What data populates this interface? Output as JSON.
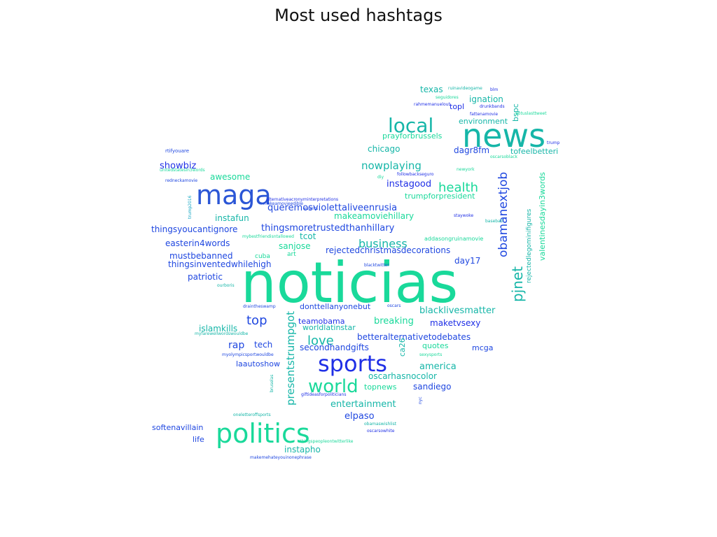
{
  "chart_data": {
    "type": "wordcloud",
    "title": "Most used hashtags",
    "colors": {
      "green": "#19d99a",
      "teal": "#16b6a8",
      "cyan": "#17a7c4",
      "blue": "#1f47e0",
      "navy": "#1f2fe6",
      "royal": "#2b56d6"
    },
    "words": [
      {
        "text": "noticias",
        "size": 6,
        "color": "green"
      },
      {
        "text": "news",
        "size": 5,
        "color": "teal"
      },
      {
        "text": "maga",
        "size": 5,
        "color": "royal"
      },
      {
        "text": "politics",
        "size": 5,
        "color": "green"
      },
      {
        "text": "sports",
        "size": 5,
        "color": "navy"
      },
      {
        "text": "local",
        "size": 4,
        "color": "teal"
      },
      {
        "text": "world",
        "size": 4,
        "color": "green"
      },
      {
        "text": "pjnet",
        "size": 3,
        "color": "teal"
      },
      {
        "text": "health",
        "size": 3,
        "color": "green"
      },
      {
        "text": "obamanextjob",
        "size": 3,
        "color": "blue"
      },
      {
        "text": "love",
        "size": 3,
        "color": "teal"
      },
      {
        "text": "top",
        "size": 3,
        "color": "blue"
      },
      {
        "text": "business",
        "size": 3,
        "color": "teal"
      },
      {
        "text": "nowplaying",
        "size": 3,
        "color": "teal"
      },
      {
        "text": "presentstrumpgot",
        "size": 3,
        "color": "teal"
      },
      {
        "text": "blacklivesmatter",
        "size": 2,
        "color": "teal"
      },
      {
        "text": "queremosviolettaliveenrusia",
        "size": 2,
        "color": "blue"
      },
      {
        "text": "thingsmoretrustedthanhillary",
        "size": 2,
        "color": "blue"
      },
      {
        "text": "instagood",
        "size": 2,
        "color": "navy"
      },
      {
        "text": "showbiz",
        "size": 2,
        "color": "navy"
      },
      {
        "text": "rap",
        "size": 2,
        "color": "blue"
      },
      {
        "text": "breaking",
        "size": 2,
        "color": "green"
      },
      {
        "text": "maketvsexy",
        "size": 2,
        "color": "navy"
      },
      {
        "text": "dagr8fm",
        "size": 2,
        "color": "blue"
      },
      {
        "text": "america",
        "size": 2,
        "color": "teal"
      },
      {
        "text": "entertainment",
        "size": 2,
        "color": "teal"
      },
      {
        "text": "elpaso",
        "size": 2,
        "color": "blue"
      },
      {
        "text": "instapho",
        "size": 2,
        "color": "teal"
      },
      {
        "text": "sandiego",
        "size": 2,
        "color": "blue"
      },
      {
        "text": "oscarhasnocolor",
        "size": 2,
        "color": "teal"
      },
      {
        "text": "chicago",
        "size": 2,
        "color": "teal"
      },
      {
        "text": "texas",
        "size": 2,
        "color": "teal"
      },
      {
        "text": "ignation",
        "size": 2,
        "color": "teal"
      },
      {
        "text": "environment",
        "size": 2,
        "color": "teal"
      },
      {
        "text": "prayforbrussels",
        "size": 2,
        "color": "green"
      },
      {
        "text": "tofeelbetteri",
        "size": 2,
        "color": "teal"
      },
      {
        "text": "topl",
        "size": 2,
        "color": "navy"
      },
      {
        "text": "bspc",
        "size": 2,
        "color": "teal"
      },
      {
        "text": "day17",
        "size": 2,
        "color": "blue"
      },
      {
        "text": "sanjose",
        "size": 2,
        "color": "green"
      },
      {
        "text": "makeamoviehillary",
        "size": 2,
        "color": "green"
      },
      {
        "text": "tcot",
        "size": 2,
        "color": "teal"
      },
      {
        "text": "instafun",
        "size": 2,
        "color": "teal"
      },
      {
        "text": "thingsyoucantignore",
        "size": 2,
        "color": "blue"
      },
      {
        "text": "easterin4words",
        "size": 2,
        "color": "blue"
      },
      {
        "text": "mustbebanned",
        "size": 2,
        "color": "blue"
      },
      {
        "text": "thingsinventedwhilehigh",
        "size": 2,
        "color": "blue"
      },
      {
        "text": "patriotic",
        "size": 2,
        "color": "blue"
      },
      {
        "text": "awesome",
        "size": 2,
        "color": "green"
      },
      {
        "text": "rejectedchristmasdecorations",
        "size": 2,
        "color": "blue"
      },
      {
        "text": "trumpforpresident",
        "size": 2,
        "color": "green"
      },
      {
        "text": "donttellanyonebut",
        "size": 2,
        "color": "blue"
      },
      {
        "text": "teamobama",
        "size": 2,
        "color": "navy"
      },
      {
        "text": "worldlatinstar",
        "size": 2,
        "color": "teal"
      },
      {
        "text": "islamkills",
        "size": 2,
        "color": "teal"
      },
      {
        "text": "tech",
        "size": 2,
        "color": "blue"
      },
      {
        "text": "betteralternativetodebates",
        "size": 2,
        "color": "blue"
      },
      {
        "text": "secondhandgifts",
        "size": 2,
        "color": "blue"
      },
      {
        "text": "quotes",
        "size": 2,
        "color": "green"
      },
      {
        "text": "mcga",
        "size": 2,
        "color": "blue"
      },
      {
        "text": "laautoshow",
        "size": 2,
        "color": "blue"
      },
      {
        "text": "topnews",
        "size": 2,
        "color": "green"
      },
      {
        "text": "ca26",
        "size": 2,
        "color": "teal"
      },
      {
        "text": "softenavillain",
        "size": 2,
        "color": "blue"
      },
      {
        "text": "life",
        "size": 2,
        "color": "blue"
      },
      {
        "text": "valentinesdayin3words",
        "size": 2,
        "color": "green"
      },
      {
        "text": "rejectedlegominifigures",
        "size": 1,
        "color": "teal"
      },
      {
        "text": "art",
        "size": 1,
        "color": "green"
      },
      {
        "text": "cuba",
        "size": 1,
        "color": "green"
      },
      {
        "text": "addasongruinamovie",
        "size": 1,
        "color": "green"
      },
      {
        "text": "blacktwitter",
        "size": 1,
        "color": "blue"
      },
      {
        "text": "ruinavideogame",
        "size": 1,
        "color": "teal"
      },
      {
        "text": "blm",
        "size": 1,
        "color": "navy"
      },
      {
        "text": "seguidores",
        "size": 1,
        "color": "green"
      },
      {
        "text": "rahmemanuelout",
        "size": 1,
        "color": "navy"
      },
      {
        "text": "drunkbands",
        "size": 1,
        "color": "navy"
      },
      {
        "text": "fattenamovie",
        "size": 1,
        "color": "navy"
      },
      {
        "text": "potuslasttweet",
        "size": 1,
        "color": "green"
      },
      {
        "text": "trump",
        "size": 1,
        "color": "navy"
      },
      {
        "text": "rtifyouare",
        "size": 1,
        "color": "blue"
      },
      {
        "text": "unitedstatesin3words",
        "size": 1,
        "color": "green"
      },
      {
        "text": "oscarsoblack",
        "size": 1,
        "color": "green"
      },
      {
        "text": "newyork",
        "size": 1,
        "color": "green"
      },
      {
        "text": "followbackseguro",
        "size": 1,
        "color": "navy"
      },
      {
        "text": "diy",
        "size": 1,
        "color": "green"
      },
      {
        "text": "redneckamovie",
        "size": 1,
        "color": "blue"
      },
      {
        "text": "trump2016",
        "size": 1,
        "color": "cyan"
      },
      {
        "text": "alternativeacronyminterpretations",
        "size": 1,
        "color": "navy"
      },
      {
        "text": "makeamovieedible",
        "size": 1,
        "color": "blue"
      },
      {
        "text": "events",
        "size": 1,
        "color": "blue"
      },
      {
        "text": "staywoke",
        "size": 1,
        "color": "navy"
      },
      {
        "text": "baseball",
        "size": 1,
        "color": "teal"
      },
      {
        "text": "mybestfriendisntallowed",
        "size": 1,
        "color": "green"
      },
      {
        "text": "ourboris",
        "size": 1,
        "color": "teal"
      },
      {
        "text": "draintheswamp",
        "size": 1,
        "color": "blue"
      },
      {
        "text": "oscars",
        "size": 1,
        "color": "blue"
      },
      {
        "text": "myfarewellwordswouldbe",
        "size": 1,
        "color": "teal"
      },
      {
        "text": "myolympicsportwouldbe",
        "size": 1,
        "color": "blue"
      },
      {
        "text": "sexysports",
        "size": 1,
        "color": "green"
      },
      {
        "text": "bruselas",
        "size": 1,
        "color": "teal"
      },
      {
        "text": "giftideasforpoliticians",
        "size": 1,
        "color": "navy"
      },
      {
        "text": "nyc",
        "size": 1,
        "color": "blue"
      },
      {
        "text": "oneletteroffsports",
        "size": 1,
        "color": "teal"
      },
      {
        "text": "obamaswishlist",
        "size": 1,
        "color": "teal"
      },
      {
        "text": "oscarsowhite",
        "size": 1,
        "color": "navy"
      },
      {
        "text": "thingspeopleontwitterlike",
        "size": 1,
        "color": "green"
      },
      {
        "text": "makemehateyouinonephrase",
        "size": 1,
        "color": "blue"
      }
    ]
  }
}
